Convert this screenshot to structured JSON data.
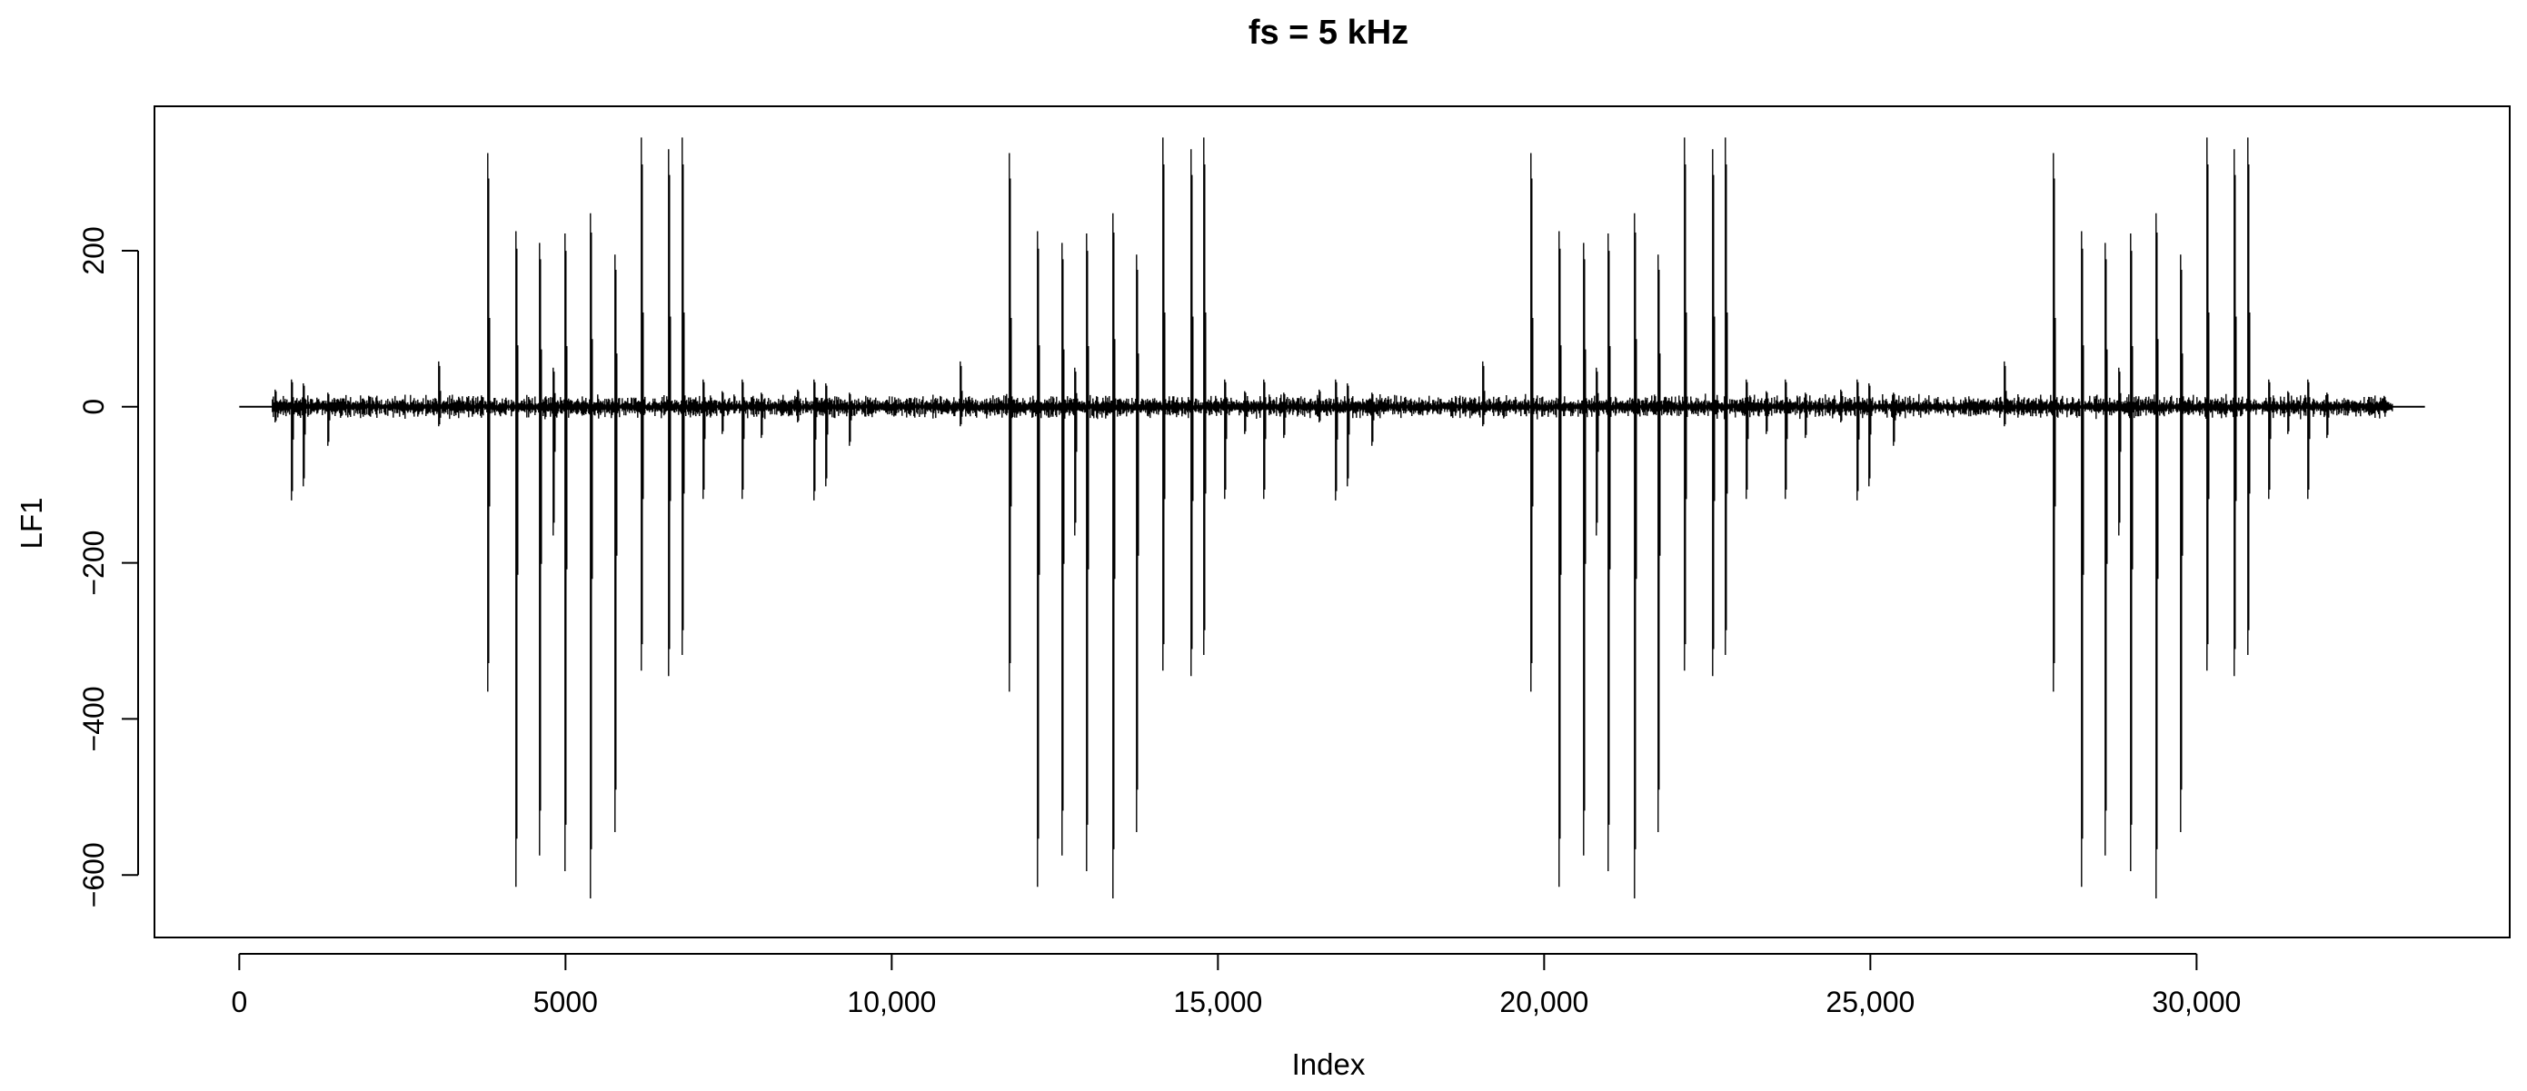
{
  "chart_data": {
    "type": "line",
    "title": "fs = 5 kHz",
    "xlabel": "Index",
    "ylabel": "LF1",
    "xlim": [
      -1300,
      34800
    ],
    "ylim": [
      -680,
      385
    ],
    "x_ticks": [
      {
        "value": 0,
        "label": "0"
      },
      {
        "value": 5000,
        "label": "5000"
      },
      {
        "value": 10000,
        "label": "10,000"
      },
      {
        "value": 15000,
        "label": "15,000"
      },
      {
        "value": 20000,
        "label": "20,000"
      },
      {
        "value": 25000,
        "label": "25,000"
      },
      {
        "value": 30000,
        "label": "30,000"
      }
    ],
    "y_ticks": [
      {
        "value": -600,
        "label": "−600"
      },
      {
        "value": -400,
        "label": "−400"
      },
      {
        "value": -200,
        "label": "−200"
      },
      {
        "value": 0,
        "label": "0"
      },
      {
        "value": 200,
        "label": "200"
      }
    ],
    "grid": false,
    "line_color": "#000000",
    "series": [
      {
        "n_points": 33500,
        "baseline": 0,
        "noise_amplitude": 8,
        "segment_period": 8000,
        "segment_offsets": [
          0,
          8000,
          16000,
          24000
        ],
        "flat_regions": [
          [
            0,
            500
          ],
          [
            33000,
            33500
          ]
        ],
        "large_spikes_per_segment": [
          {
            "x": 3800,
            "min": -365,
            "max": 325
          },
          {
            "x": 4230,
            "min": -615,
            "max": 225
          },
          {
            "x": 4600,
            "min": -575,
            "max": 210
          },
          {
            "x": 4800,
            "min": -165,
            "max": 50
          },
          {
            "x": 4980,
            "min": -595,
            "max": 222
          },
          {
            "x": 5380,
            "min": -630,
            "max": 248
          },
          {
            "x": 5750,
            "min": -545,
            "max": 195
          },
          {
            "x": 6150,
            "min": -338,
            "max": 345
          },
          {
            "x": 6580,
            "min": -345,
            "max": 330
          },
          {
            "x": 6780,
            "min": -318,
            "max": 345
          }
        ],
        "small_spikes_per_segment": [
          {
            "x": 550,
            "min": -20,
            "max": 22
          },
          {
            "x": 800,
            "min": -120,
            "max": 35
          },
          {
            "x": 980,
            "min": -102,
            "max": 30
          },
          {
            "x": 1350,
            "min": -50,
            "max": 18
          },
          {
            "x": 3050,
            "min": -25,
            "max": 58
          },
          {
            "x": 7100,
            "min": -118,
            "max": 35
          },
          {
            "x": 7400,
            "min": -35,
            "max": 20
          },
          {
            "x": 7700,
            "min": -118,
            "max": 35
          },
          {
            "x": 8000,
            "min": -40,
            "max": 18
          }
        ]
      }
    ]
  }
}
